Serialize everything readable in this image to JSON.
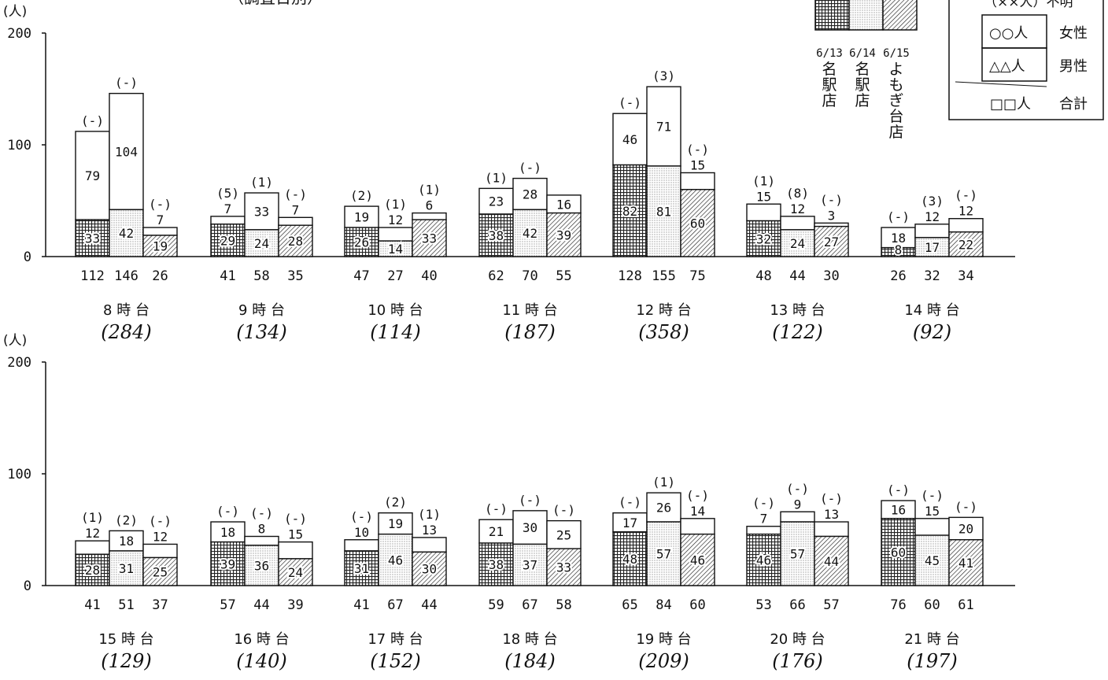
{
  "chart_data": {
    "type": "bar",
    "stacked": true,
    "y_unit": "(人)",
    "ylim": [
      0,
      200
    ],
    "yticks": [
      0,
      100,
      200
    ],
    "partial_title": "（調査日別）",
    "stores": [
      {
        "date": "6/13",
        "name": "名駅店",
        "pattern": "cross-hatch"
      },
      {
        "date": "6/14",
        "name": "名駅店",
        "pattern": "dots"
      },
      {
        "date": "6/15",
        "name": "よもぎ台店",
        "pattern": "diagonal-hatch"
      }
    ],
    "legend": {
      "unknown": "（××人）不明",
      "female_value": "○○人",
      "female": "女性",
      "male_value": "△△人",
      "male": "男性",
      "total_value": "□□人",
      "total": "合計"
    },
    "groups": [
      {
        "label": "8 時 台",
        "sum": "(284)",
        "bars": [
          {
            "male": 33,
            "female": 79,
            "unknown": "(-)",
            "total": 112
          },
          {
            "male": 42,
            "female": 104,
            "unknown": "(-)",
            "total": 146
          },
          {
            "male": 19,
            "female": 7,
            "unknown": "(-)",
            "total": 26
          }
        ]
      },
      {
        "label": "9 時 台",
        "sum": "(134)",
        "bars": [
          {
            "male": 29,
            "female": 7,
            "unknown": "(5)",
            "total": 41
          },
          {
            "male": 24,
            "female": 33,
            "unknown": "(1)",
            "total": 58
          },
          {
            "male": 28,
            "female": 7,
            "unknown": "(-)",
            "total": 35
          }
        ]
      },
      {
        "label": "10 時 台",
        "sum": "(114)",
        "bars": [
          {
            "male": 26,
            "female": 19,
            "unknown": "(2)",
            "total": 47
          },
          {
            "male": 14,
            "female": 12,
            "unknown": "(1)",
            "total": 27
          },
          {
            "male": 33,
            "female": 6,
            "unknown": "(1)",
            "total": 40
          }
        ]
      },
      {
        "label": "11 時 台",
        "sum": "(187)",
        "bars": [
          {
            "male": 38,
            "female": 23,
            "unknown": "(1)",
            "total": 62
          },
          {
            "male": 42,
            "female": 28,
            "unknown": "(-)",
            "total": 70
          },
          {
            "male": 39,
            "female": 16,
            "unknown": "",
            "total": 55
          }
        ]
      },
      {
        "label": "12 時 台",
        "sum": "(358)",
        "bars": [
          {
            "male": 82,
            "female": 46,
            "unknown": "(-)",
            "total": 128
          },
          {
            "male": 81,
            "female": 71,
            "unknown": "(3)",
            "total": 155
          },
          {
            "male": 60,
            "female": 15,
            "unknown": "(-)",
            "total": 75
          }
        ]
      },
      {
        "label": "13 時 台",
        "sum": "(122)",
        "bars": [
          {
            "male": 32,
            "female": 15,
            "unknown": "(1)",
            "total": 48
          },
          {
            "male": 24,
            "female": 12,
            "unknown": "(8)",
            "total": 44
          },
          {
            "male": 27,
            "female": 3,
            "unknown": "(-)",
            "total": 30
          }
        ]
      },
      {
        "label": "14 時 台",
        "sum": "(92)",
        "bars": [
          {
            "male": 8,
            "female": 18,
            "unknown": "(-)",
            "total": 26
          },
          {
            "male": 17,
            "female": 12,
            "unknown": "(3)",
            "total": 32
          },
          {
            "male": 22,
            "female": 12,
            "unknown": "(-)",
            "total": 34
          }
        ]
      },
      {
        "label": "15 時 台",
        "sum": "(129)",
        "bars": [
          {
            "male": 28,
            "female": 12,
            "unknown": "(1)",
            "total": 41
          },
          {
            "male": 31,
            "female": 18,
            "unknown": "(2)",
            "total": 51
          },
          {
            "male": 25,
            "female": 12,
            "unknown": "(-)",
            "total": 37
          }
        ]
      },
      {
        "label": "16 時 台",
        "sum": "(140)",
        "bars": [
          {
            "male": 39,
            "female": 18,
            "unknown": "(-)",
            "total": 57
          },
          {
            "male": 36,
            "female": 8,
            "unknown": "(-)",
            "total": 44
          },
          {
            "male": 24,
            "female": 15,
            "unknown": "(-)",
            "total": 39
          }
        ]
      },
      {
        "label": "17 時 台",
        "sum": "(152)",
        "bars": [
          {
            "male": 31,
            "female": 10,
            "unknown": "(-)",
            "total": 41
          },
          {
            "male": 46,
            "female": 19,
            "unknown": "(2)",
            "total": 67
          },
          {
            "male": 30,
            "female": 13,
            "unknown": "(1)",
            "total": 44
          }
        ]
      },
      {
        "label": "18 時 台",
        "sum": "(184)",
        "bars": [
          {
            "male": 38,
            "female": 21,
            "unknown": "(-)",
            "total": 59
          },
          {
            "male": 37,
            "female": 30,
            "unknown": "(-)",
            "total": 67
          },
          {
            "male": 33,
            "female": 25,
            "unknown": "(-)",
            "total": 58
          }
        ]
      },
      {
        "label": "19 時 台",
        "sum": "(209)",
        "bars": [
          {
            "male": 48,
            "female": 17,
            "unknown": "(-)",
            "total": 65
          },
          {
            "male": 57,
            "female": 26,
            "unknown": "(1)",
            "total": 84
          },
          {
            "male": 46,
            "female": 14,
            "unknown": "(-)",
            "total": 60
          }
        ]
      },
      {
        "label": "20 時 台",
        "sum": "(176)",
        "bars": [
          {
            "male": 46,
            "female": 7,
            "unknown": "(-)",
            "total": 53
          },
          {
            "male": 57,
            "female": 9,
            "unknown": "(-)",
            "total": 66
          },
          {
            "male": 44,
            "female": 13,
            "unknown": "(-)",
            "total": 57
          }
        ]
      },
      {
        "label": "21 時 台",
        "sum": "(197)",
        "bars": [
          {
            "male": 60,
            "female": 16,
            "unknown": "(-)",
            "total": 76
          },
          {
            "male": 45,
            "female": 15,
            "unknown": "(-)",
            "total": 60
          },
          {
            "male": 41,
            "female": 20,
            "unknown": "(-)",
            "total": 61
          }
        ]
      }
    ]
  }
}
